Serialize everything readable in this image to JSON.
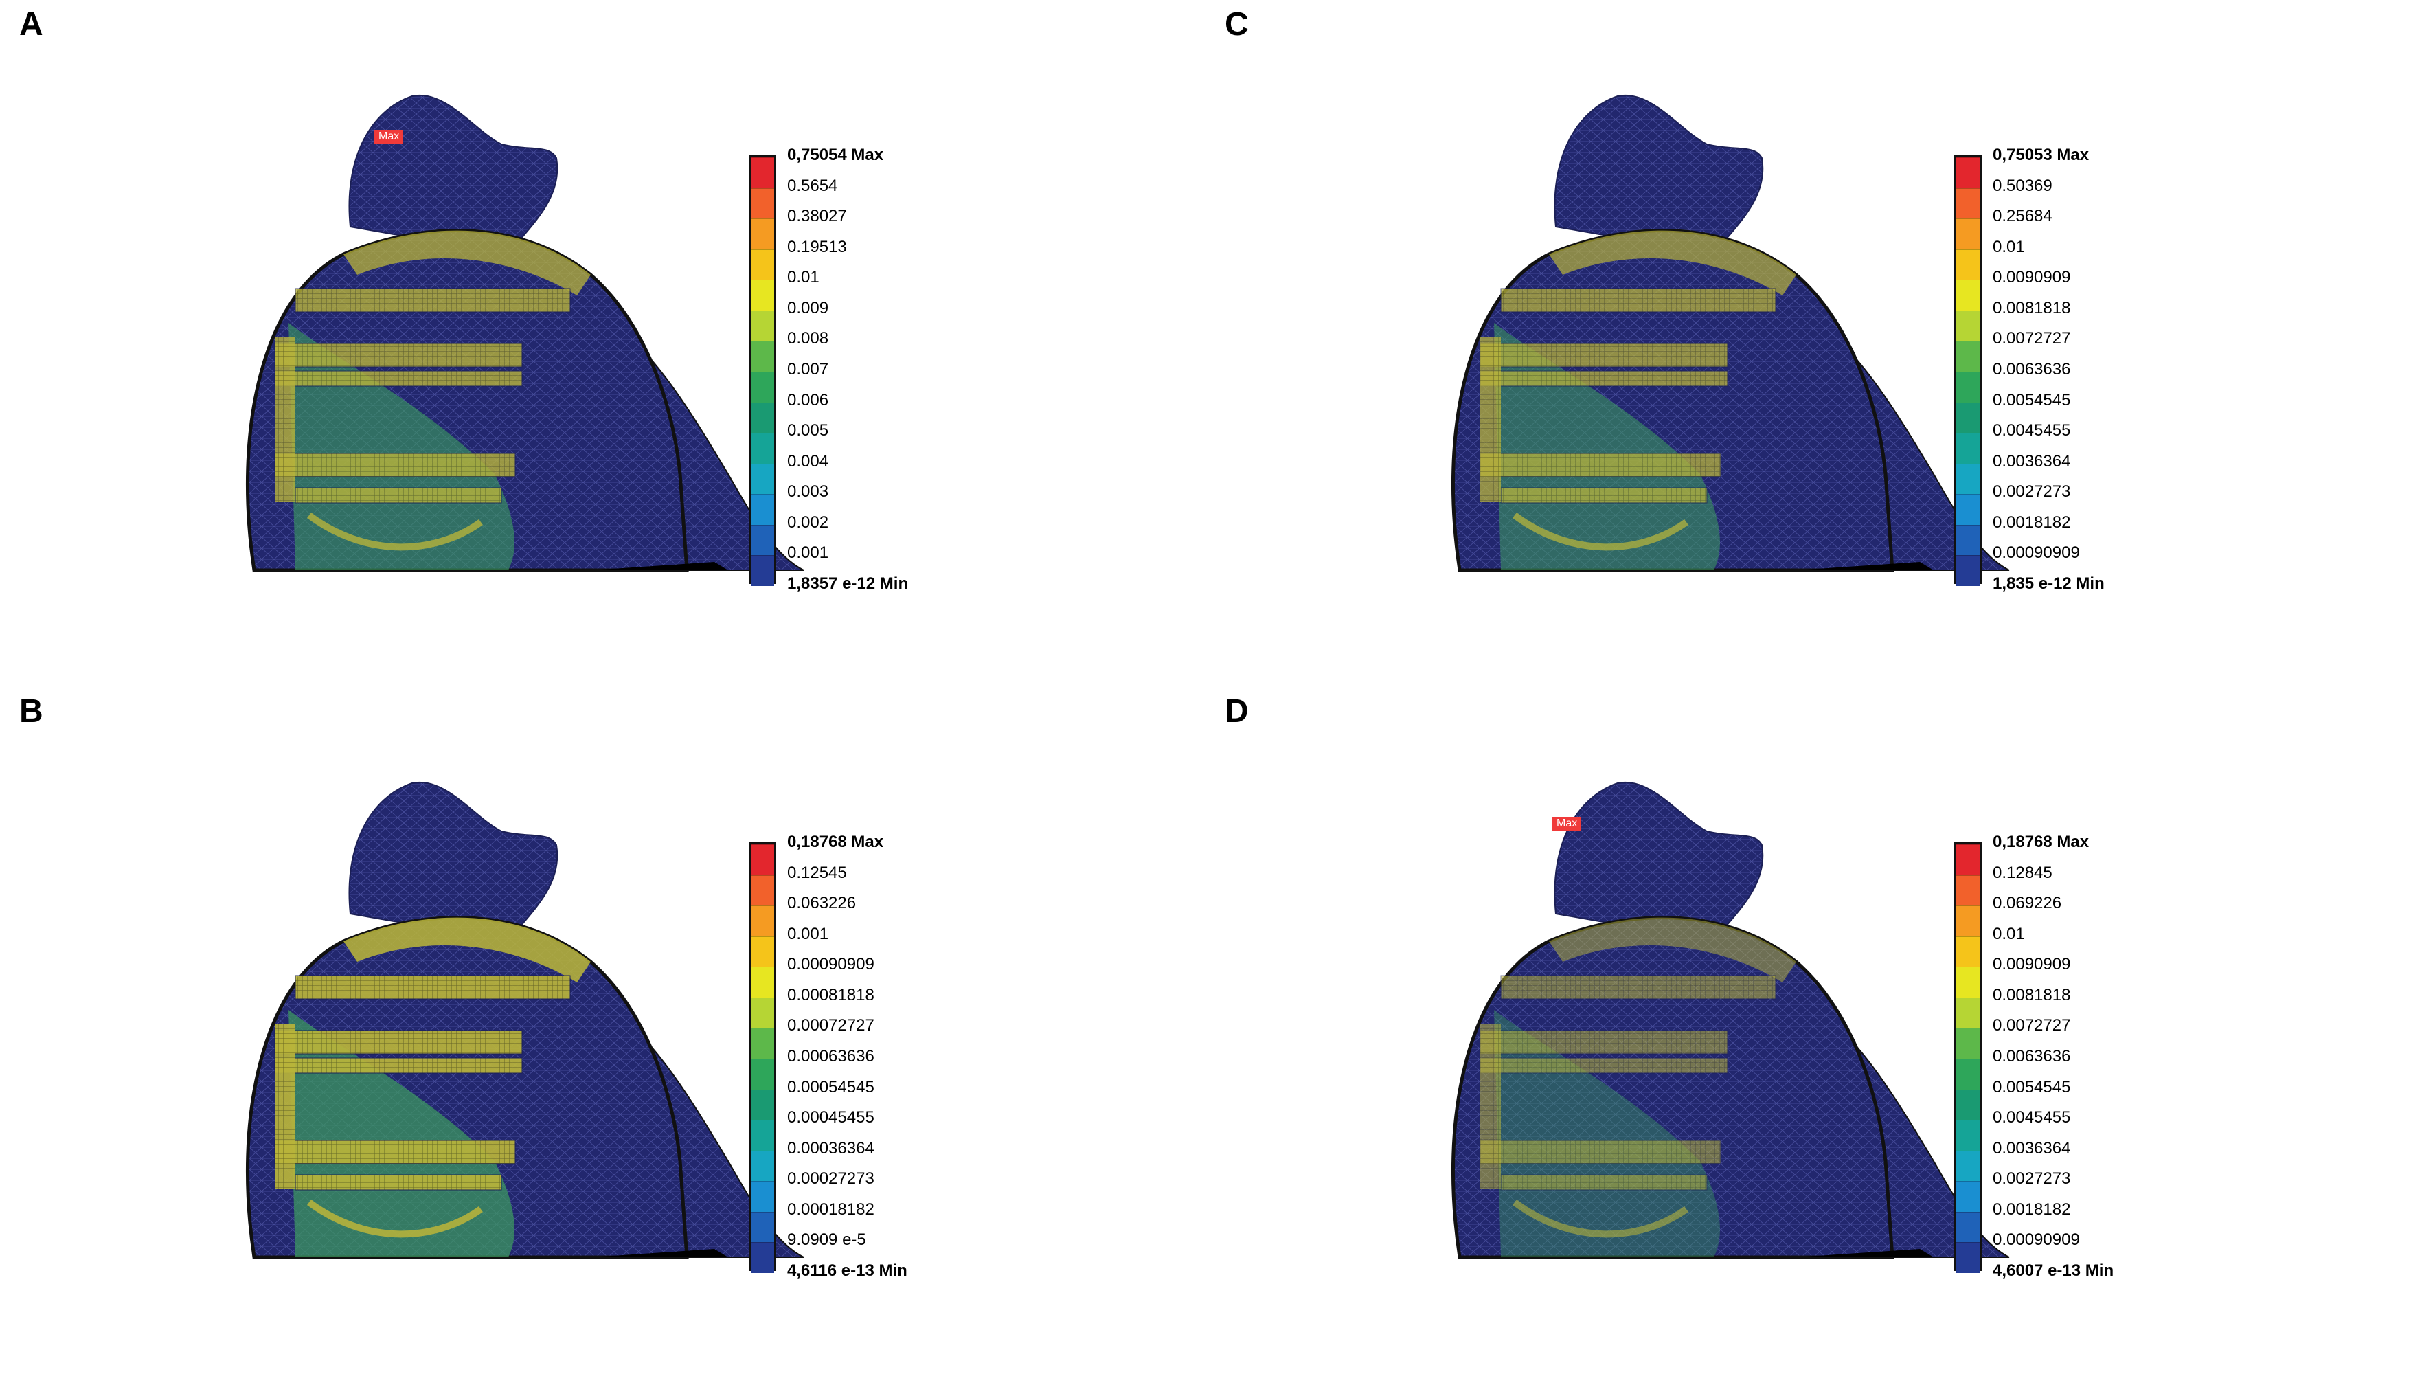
{
  "panels": [
    {
      "letter": "A",
      "legend": [
        "0,75054 Max",
        "0.5654",
        "0.38027",
        "0.19513",
        "0.01",
        "0.009",
        "0.008",
        "0.007",
        "0.006",
        "0.005",
        "0.004",
        "0.003",
        "0.002",
        "0.001",
        "1,8357 e-12 Min"
      ],
      "max_tag": "Max",
      "max_tag_fx": 0.245,
      "max_tag_fy": 0.145,
      "stress_level": 0.75
    },
    {
      "letter": "C",
      "legend": [
        "0,75053 Max",
        "0.50369",
        "0.25684",
        "0.01",
        "0.0090909",
        "0.0081818",
        "0.0072727",
        "0.0063636",
        "0.0054545",
        "0.0045455",
        "0.0036364",
        "0.0027273",
        "0.0018182",
        "0.00090909",
        "1,835 e-12 Min"
      ],
      "max_tag": "",
      "stress_level": 0.65
    },
    {
      "letter": "B",
      "legend": [
        "0,18768 Max",
        "0.12545",
        "0.063226",
        "0.001",
        "0.00090909",
        "0.00081818",
        "0.00072727",
        "0.00063636",
        "0.00054545",
        "0.00045455",
        "0.00036364",
        "0.00027273",
        "0.00018182",
        "9.0909 e-5",
        "4,6116 e-13 Min"
      ],
      "max_tag": "",
      "stress_level": 0.95
    },
    {
      "letter": "D",
      "legend": [
        "0,18768 Max",
        "0.12845",
        "0.069226",
        "0.01",
        "0.0090909",
        "0.0081818",
        "0.0072727",
        "0.0063636",
        "0.0054545",
        "0.0045455",
        "0.0036364",
        "0.0027273",
        "0.0018182",
        "0.00090909",
        "4,6007 e-13 Min"
      ],
      "max_tag": "Max",
      "max_tag_fx": 0.205,
      "max_tag_fy": 0.145,
      "stress_level": 0.35
    }
  ],
  "colors": {
    "scale": [
      "#e3262d",
      "#f2612b",
      "#f59b22",
      "#f5c41a",
      "#e7e621",
      "#b6d534",
      "#5db84a",
      "#2ea65a",
      "#1a9a72",
      "#15a497",
      "#17a6c2",
      "#1a8fd1",
      "#1f62b8",
      "#243c95"
    ],
    "mesh_base": "#22276e",
    "stress_yellow": "#b9b43a",
    "stress_green": "#3c9b5f"
  }
}
